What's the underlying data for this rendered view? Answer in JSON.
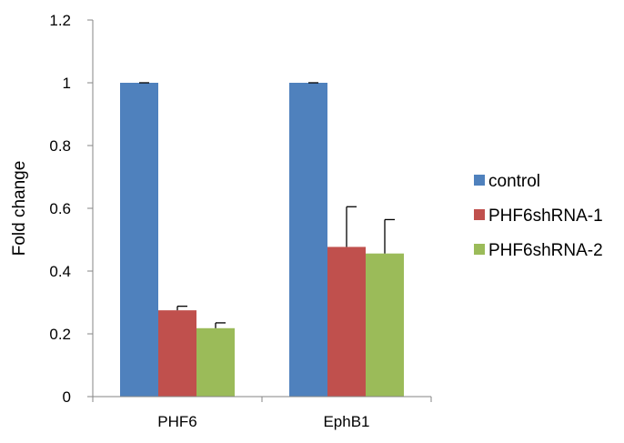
{
  "chart_data": {
    "type": "bar",
    "categories": [
      "PHF6",
      "EphB1"
    ],
    "series": [
      {
        "name": "control",
        "color": "#4F81BD",
        "values": [
          1.0,
          1.0
        ],
        "errors": [
          0.0,
          0.0
        ]
      },
      {
        "name": "PHF6shRNA-1",
        "color": "#C0504D",
        "values": [
          0.275,
          0.477
        ],
        "errors": [
          0.013,
          0.128
        ]
      },
      {
        "name": "PHF6shRNA-2",
        "color": "#9BBB59",
        "values": [
          0.218,
          0.456
        ],
        "errors": [
          0.017,
          0.108
        ]
      }
    ],
    "ylabel": "Fold change",
    "xlabel": "",
    "ylim": [
      0,
      1.2
    ],
    "yticks": [
      "0",
      "0.2",
      "0.4",
      "0.6",
      "0.8",
      "1",
      "1.2"
    ],
    "grid": false,
    "legend_position": "right"
  }
}
